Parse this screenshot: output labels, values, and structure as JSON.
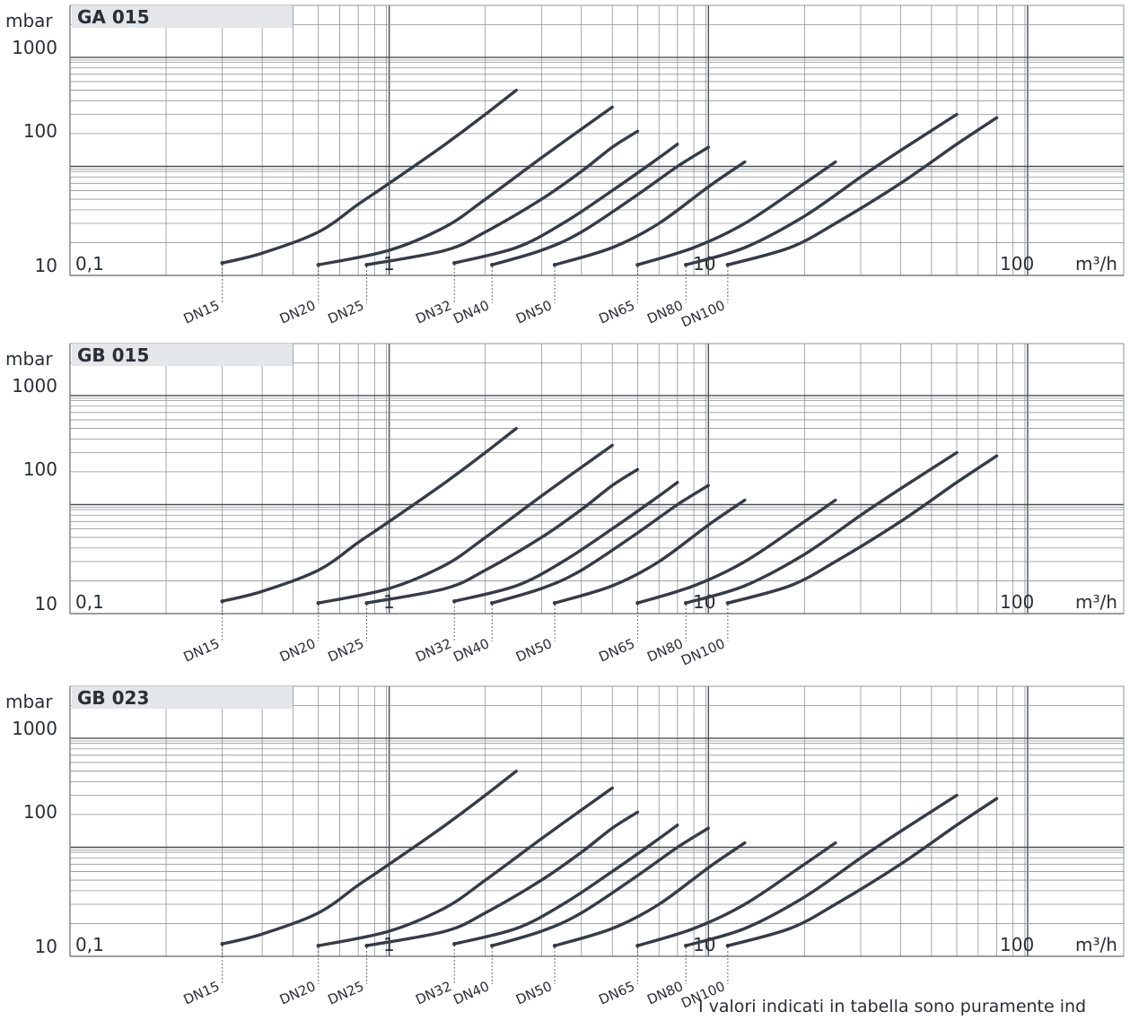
{
  "note": "I valori indicati in tabella sono puramente ind",
  "colors": {
    "curve": "#353c46",
    "grid": "#8f9499",
    "title_bg": "#e4e7ea",
    "text": "#2a2f36"
  },
  "chart_data": [
    {
      "type": "line",
      "title": "GA 015",
      "ylabel": "mbar",
      "xlabel_unit": "m³/h",
      "xscale": "log",
      "yscale": "log",
      "xlim": [
        0.1,
        200
      ],
      "ylim": [
        10,
        3000
      ],
      "x_tick_labels": [
        "0,1",
        "1",
        "10",
        "100"
      ],
      "y_tick_labels": [
        "10",
        "100",
        "1000"
      ],
      "series": [
        {
          "name": "DN15",
          "x": [
            0.3,
            0.4,
            0.6,
            0.8,
            1,
            1.5,
            2,
            2.5
          ],
          "y": [
            13,
            16,
            25,
            45,
            70,
            160,
            300,
            500
          ]
        },
        {
          "name": "DN20",
          "x": [
            0.6,
            1,
            1.5,
            2,
            3,
            4,
            5
          ],
          "y": [
            12.5,
            17,
            28,
            50,
            120,
            220,
            350
          ]
        },
        {
          "name": "DN25",
          "x": [
            0.85,
            1.5,
            2,
            3,
            4,
            5,
            6
          ],
          "y": [
            12.5,
            17,
            25,
            50,
            90,
            150,
            210
          ]
        },
        {
          "name": "DN32",
          "x": [
            1.6,
            2.5,
            3.5,
            5,
            7,
            8
          ],
          "y": [
            13,
            18,
            30,
            60,
            120,
            160
          ]
        },
        {
          "name": "DN40",
          "x": [
            2.1,
            3,
            4,
            6,
            8,
            10
          ],
          "y": [
            12.5,
            17,
            25,
            55,
            100,
            150
          ]
        },
        {
          "name": "DN50",
          "x": [
            3.3,
            5,
            7,
            10,
            13
          ],
          "y": [
            12.5,
            18,
            30,
            65,
            110
          ]
        },
        {
          "name": "DN65",
          "x": [
            6,
            9,
            13,
            20,
            25
          ],
          "y": [
            12.5,
            18,
            30,
            70,
            110
          ]
        },
        {
          "name": "DN80",
          "x": [
            8.5,
            13,
            20,
            30,
            40,
            60
          ],
          "y": [
            12.5,
            18,
            35,
            80,
            140,
            300
          ]
        },
        {
          "name": "DN100",
          "x": [
            11.5,
            18,
            25,
            40,
            60,
            80
          ],
          "y": [
            12.5,
            18,
            30,
            70,
            160,
            280
          ]
        }
      ]
    },
    {
      "type": "line",
      "title": "GB 015",
      "ylabel": "mbar",
      "xlabel_unit": "m³/h",
      "xscale": "log",
      "yscale": "log",
      "xlim": [
        0.1,
        200
      ],
      "ylim": [
        10,
        3000
      ],
      "x_tick_labels": [
        "0,1",
        "1",
        "10",
        "100"
      ],
      "y_tick_labels": [
        "10",
        "100",
        "1000"
      ],
      "series": [
        {
          "name": "DN15",
          "x": [
            0.3,
            0.4,
            0.6,
            0.8,
            1,
            1.5,
            2,
            2.5
          ],
          "y": [
            13,
            16,
            25,
            45,
            70,
            160,
            300,
            500
          ]
        },
        {
          "name": "DN20",
          "x": [
            0.6,
            1,
            1.5,
            2,
            3,
            4,
            5
          ],
          "y": [
            12.5,
            17,
            28,
            50,
            120,
            220,
            350
          ]
        },
        {
          "name": "DN25",
          "x": [
            0.85,
            1.5,
            2,
            3,
            4,
            5,
            6
          ],
          "y": [
            12.5,
            17,
            25,
            50,
            90,
            150,
            210
          ]
        },
        {
          "name": "DN32",
          "x": [
            1.6,
            2.5,
            3.5,
            5,
            7,
            8
          ],
          "y": [
            13,
            18,
            30,
            60,
            120,
            160
          ]
        },
        {
          "name": "DN40",
          "x": [
            2.1,
            3,
            4,
            6,
            8,
            10
          ],
          "y": [
            12.5,
            17,
            25,
            55,
            100,
            150
          ]
        },
        {
          "name": "DN50",
          "x": [
            3.3,
            5,
            7,
            10,
            13
          ],
          "y": [
            12.5,
            18,
            30,
            65,
            110
          ]
        },
        {
          "name": "DN65",
          "x": [
            6,
            9,
            13,
            20,
            25
          ],
          "y": [
            12.5,
            18,
            30,
            70,
            110
          ]
        },
        {
          "name": "DN80",
          "x": [
            8.5,
            13,
            20,
            30,
            40,
            60
          ],
          "y": [
            12.5,
            18,
            35,
            80,
            140,
            300
          ]
        },
        {
          "name": "DN100",
          "x": [
            11.5,
            18,
            25,
            40,
            60,
            80
          ],
          "y": [
            12.5,
            18,
            30,
            70,
            160,
            280
          ]
        }
      ]
    },
    {
      "type": "line",
      "title": "GB 023",
      "ylabel": "mbar",
      "xlabel_unit": "m³/h",
      "xscale": "log",
      "yscale": "log",
      "xlim": [
        0.1,
        200
      ],
      "ylim": [
        10,
        3000
      ],
      "x_tick_labels": [
        "0,1",
        "1",
        "10",
        "100"
      ],
      "y_tick_labels": [
        "10",
        "100",
        "1000"
      ],
      "series": [
        {
          "name": "DN15",
          "x": [
            0.3,
            0.4,
            0.6,
            0.8,
            1,
            1.5,
            2,
            2.5
          ],
          "y": [
            13,
            16,
            25,
            45,
            70,
            160,
            300,
            500
          ]
        },
        {
          "name": "DN20",
          "x": [
            0.6,
            1,
            1.5,
            2,
            3,
            4,
            5
          ],
          "y": [
            12.5,
            17,
            28,
            50,
            120,
            220,
            350
          ]
        },
        {
          "name": "DN25",
          "x": [
            0.85,
            1.5,
            2,
            3,
            4,
            5,
            6
          ],
          "y": [
            12.5,
            17,
            25,
            50,
            90,
            150,
            210
          ]
        },
        {
          "name": "DN32",
          "x": [
            1.6,
            2.5,
            3.5,
            5,
            7,
            8
          ],
          "y": [
            13,
            18,
            30,
            60,
            120,
            160
          ]
        },
        {
          "name": "DN40",
          "x": [
            2.1,
            3,
            4,
            6,
            8,
            10
          ],
          "y": [
            12.5,
            17,
            25,
            55,
            100,
            150
          ]
        },
        {
          "name": "DN50",
          "x": [
            3.3,
            5,
            7,
            10,
            13
          ],
          "y": [
            12.5,
            18,
            30,
            65,
            110
          ]
        },
        {
          "name": "DN65",
          "x": [
            6,
            9,
            13,
            20,
            25
          ],
          "y": [
            12.5,
            18,
            30,
            70,
            110
          ]
        },
        {
          "name": "DN80",
          "x": [
            8.5,
            13,
            20,
            30,
            40,
            60
          ],
          "y": [
            12.5,
            18,
            35,
            80,
            140,
            300
          ]
        },
        {
          "name": "DN100",
          "x": [
            11.5,
            18,
            25,
            40,
            60,
            80
          ],
          "y": [
            12.5,
            18,
            30,
            70,
            160,
            280
          ]
        }
      ]
    }
  ]
}
